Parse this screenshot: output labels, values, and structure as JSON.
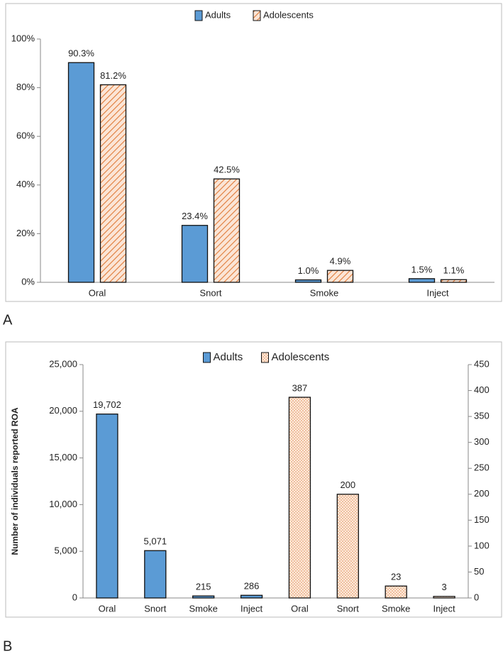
{
  "chart_data": [
    {
      "type": "bar",
      "panel_label": "A",
      "categories": [
        "Oral",
        "Snort",
        "Smoke",
        "Inject"
      ],
      "series": [
        {
          "name": "Adults",
          "color": "#5b9bd5",
          "pattern": "solid",
          "values": [
            90.3,
            23.4,
            1.0,
            1.5
          ],
          "value_labels": [
            "90.3%",
            "23.4%",
            "1.0%",
            "1.5%"
          ]
        },
        {
          "name": "Adolescents",
          "color": "#e8804a",
          "pattern": "hatch",
          "values": [
            81.2,
            42.5,
            4.9,
            1.1
          ],
          "value_labels": [
            "81.2%",
            "42.5%",
            "4.9%",
            "1.1%"
          ]
        }
      ],
      "ylim": [
        0,
        100
      ],
      "yticks": [
        {
          "value": 0,
          "label": "0%"
        },
        {
          "value": 20,
          "label": "20%"
        },
        {
          "value": 40,
          "label": "40%"
        },
        {
          "value": 60,
          "label": "60%"
        },
        {
          "value": 80,
          "label": "80%"
        },
        {
          "value": 100,
          "label": "100%"
        }
      ],
      "grid": false,
      "legend": "top"
    },
    {
      "type": "bar",
      "panel_label": "B",
      "ylabel": "Number of individuals reported ROA",
      "categories": [
        "Oral",
        "Snort",
        "Smoke",
        "Inject",
        "Oral",
        "Snort",
        "Smoke",
        "Inject"
      ],
      "series": [
        {
          "name": "Adults",
          "color": "#5b9bd5",
          "pattern": "solid",
          "values": [
            19702,
            5071,
            215,
            286,
            null,
            null,
            null,
            null
          ],
          "value_labels": [
            "19,702",
            "5,071",
            "215",
            "286",
            null,
            null,
            null,
            null
          ]
        },
        {
          "name": "Adolescents",
          "color": "#e8804a",
          "pattern": "dots",
          "axis": "y2",
          "values": [
            null,
            null,
            null,
            null,
            387,
            200,
            23,
            3
          ]
        }
      ],
      "ylim": [
        0,
        25000
      ],
      "yticks": [
        0,
        {
          "value": 5000,
          "label": "5,000"
        },
        {
          "value": 10000,
          "label": "10,000"
        },
        {
          "value": 15000,
          "label": "15,000"
        },
        {
          "value": 20000,
          "label": "20,000"
        },
        {
          "value": 25000,
          "label": "25,000"
        }
      ],
      "y2lim": [
        0,
        450
      ],
      "y2ticks": [
        0,
        50,
        100,
        150,
        200,
        250,
        300,
        350,
        400,
        450
      ],
      "grid": false,
      "legend": "top"
    }
  ]
}
